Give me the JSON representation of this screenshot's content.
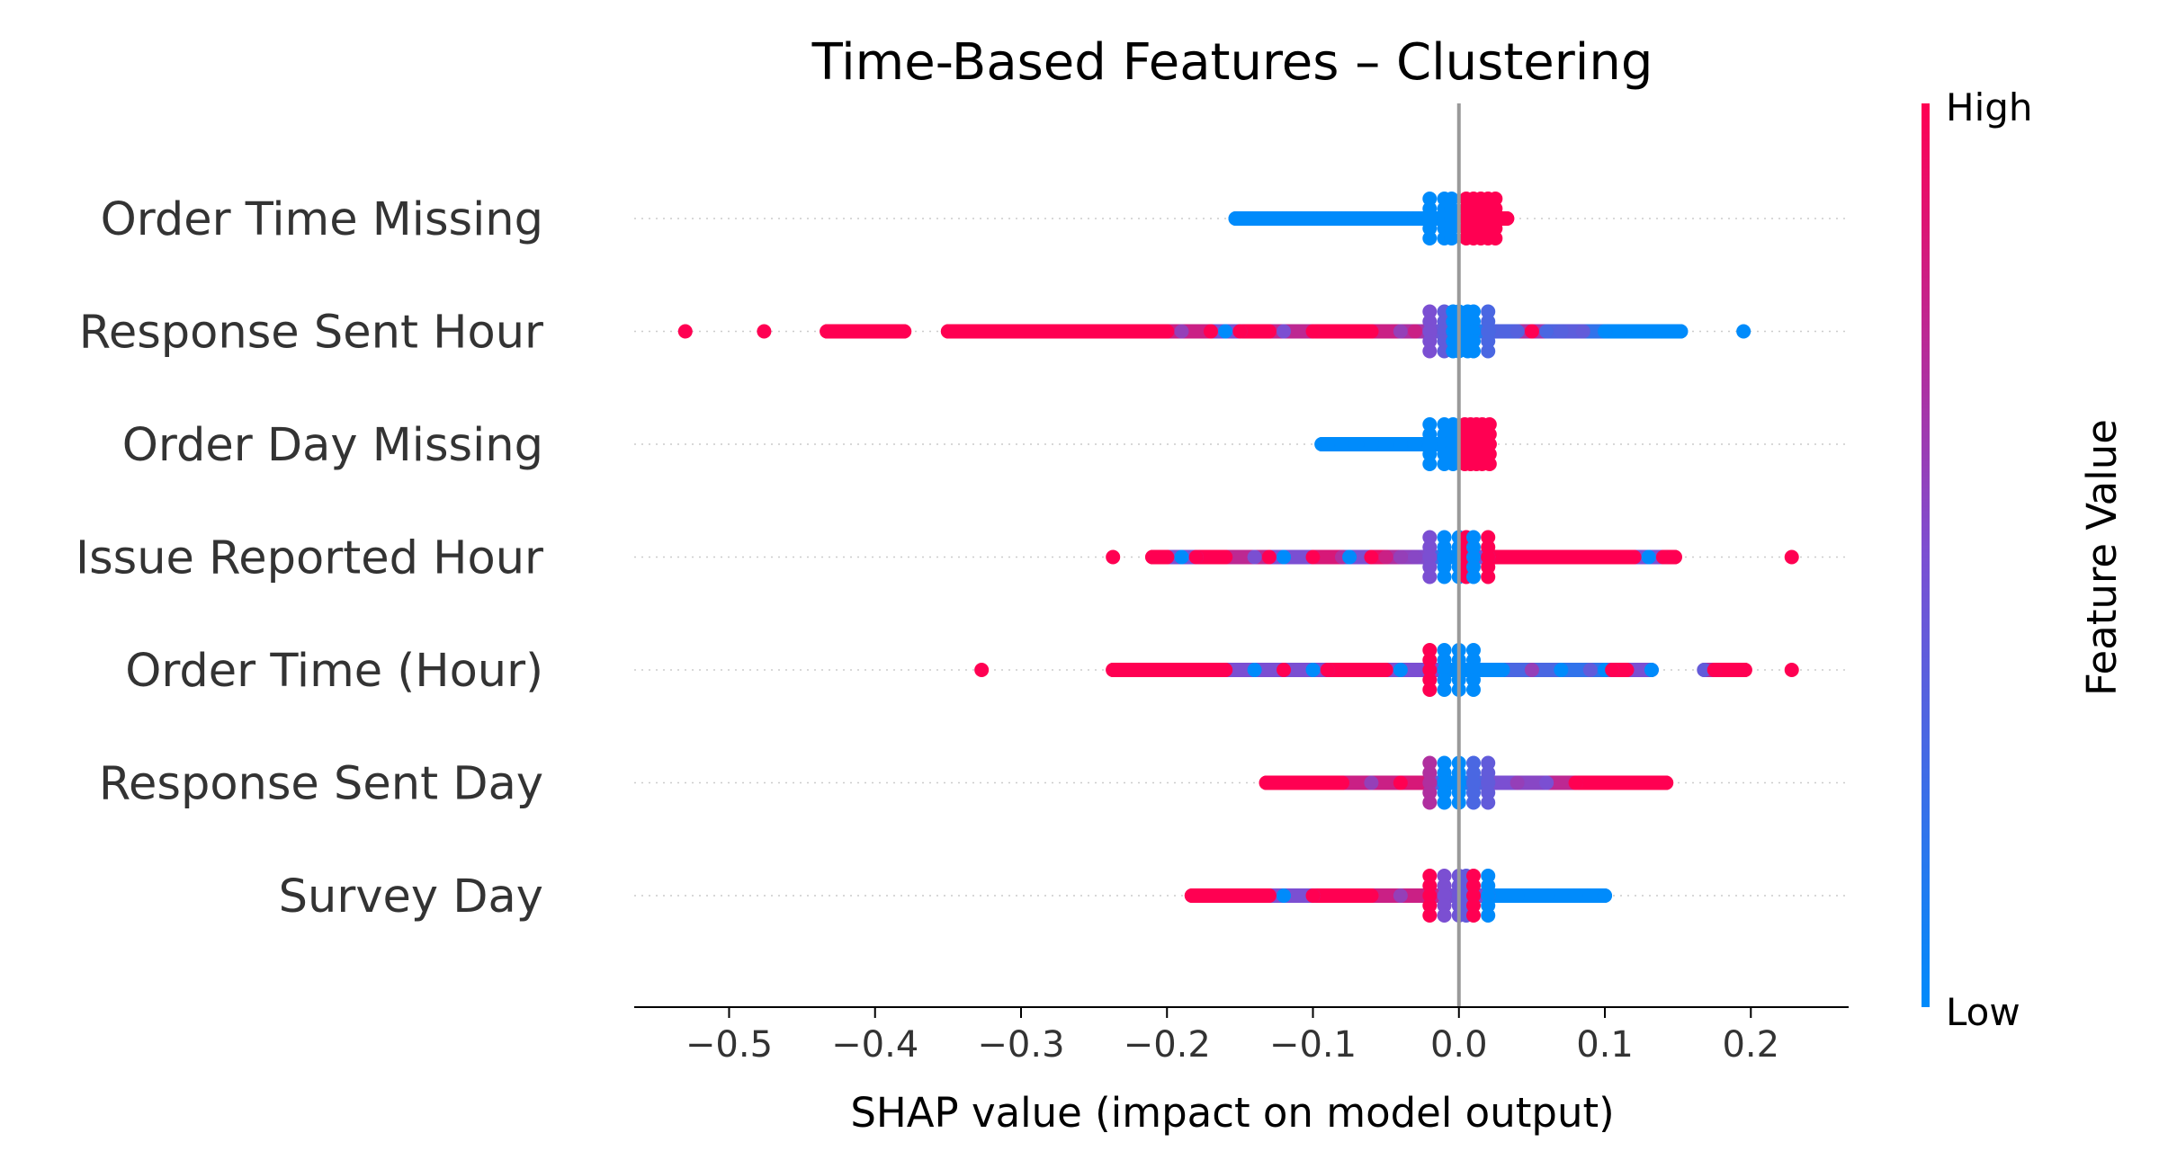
{
  "chart_data": {
    "type": "scatter",
    "subtype": "shap-beeswarm",
    "title": "Time-Based Features – Clustering",
    "xlabel": "SHAP value (impact on model output)",
    "xlim": [
      -0.565,
      0.267
    ],
    "xticks": [
      -0.5,
      -0.4,
      -0.3,
      -0.2,
      -0.1,
      0.0,
      0.1,
      0.2
    ],
    "xtick_labels": [
      "−0.5",
      "−0.4",
      "−0.3",
      "−0.2",
      "−0.1",
      "0.0",
      "0.1",
      "0.2"
    ],
    "zero_line": true,
    "grid": false,
    "colorbar": {
      "label": "Feature Value",
      "high_label": "High",
      "low_label": "Low",
      "low_color": "#008bfb",
      "mid_color": "#7b4fd2",
      "high_color": "#ff0052"
    },
    "features": [
      {
        "name": "Order Time Missing",
        "range": [
          -0.153,
          0.033
        ],
        "points": [
          [
            -0.153,
            0
          ],
          [
            -0.15,
            0
          ],
          [
            -0.145,
            0
          ],
          [
            -0.14,
            0
          ],
          [
            -0.13,
            0
          ],
          [
            -0.12,
            0
          ],
          [
            -0.11,
            0
          ],
          [
            -0.1,
            0
          ],
          [
            -0.09,
            0
          ],
          [
            -0.08,
            0
          ],
          [
            -0.07,
            0
          ],
          [
            -0.06,
            0
          ],
          [
            -0.05,
            0
          ],
          [
            -0.04,
            0
          ],
          [
            -0.03,
            0
          ],
          [
            -0.02,
            0
          ],
          [
            -0.01,
            0
          ],
          [
            -0.005,
            0
          ],
          [
            0.005,
            1
          ],
          [
            0.01,
            1
          ],
          [
            0.015,
            1
          ],
          [
            0.02,
            1
          ],
          [
            0.025,
            1
          ],
          [
            0.03,
            1
          ],
          [
            0.033,
            1
          ]
        ]
      },
      {
        "name": "Response Sent Hour",
        "range": [
          -0.53,
          0.195
        ],
        "points": [
          [
            -0.53,
            1
          ],
          [
            -0.476,
            1
          ],
          [
            -0.433,
            1
          ],
          [
            -0.42,
            1
          ],
          [
            -0.41,
            1
          ],
          [
            -0.395,
            1
          ],
          [
            -0.38,
            1
          ],
          [
            -0.35,
            1
          ],
          [
            -0.34,
            1
          ],
          [
            -0.322,
            1
          ],
          [
            -0.3,
            1
          ],
          [
            -0.28,
            1
          ],
          [
            -0.26,
            1
          ],
          [
            -0.24,
            1
          ],
          [
            -0.22,
            1
          ],
          [
            -0.2,
            1
          ],
          [
            -0.19,
            0.6
          ],
          [
            -0.17,
            1
          ],
          [
            -0.16,
            0
          ],
          [
            -0.15,
            1
          ],
          [
            -0.13,
            1
          ],
          [
            -0.12,
            0.5
          ],
          [
            -0.1,
            1
          ],
          [
            -0.08,
            1
          ],
          [
            -0.06,
            1
          ],
          [
            -0.04,
            0.6
          ],
          [
            -0.03,
            0.8
          ],
          [
            -0.02,
            0.5
          ],
          [
            -0.01,
            0.4
          ],
          [
            -0.004,
            0
          ],
          [
            0.0,
            0
          ],
          [
            0.006,
            0
          ],
          [
            0.01,
            0
          ],
          [
            0.02,
            0.3
          ],
          [
            0.04,
            0.35
          ],
          [
            0.05,
            1
          ],
          [
            0.06,
            0.3
          ],
          [
            0.07,
            0.35
          ],
          [
            0.085,
            0.4
          ],
          [
            0.1,
            0
          ],
          [
            0.11,
            0
          ],
          [
            0.123,
            0
          ],
          [
            0.137,
            0
          ],
          [
            0.152,
            0
          ],
          [
            0.195,
            0
          ]
        ]
      },
      {
        "name": "Order Day Missing",
        "range": [
          -0.094,
          0.021
        ],
        "points": [
          [
            -0.094,
            0
          ],
          [
            -0.09,
            0
          ],
          [
            -0.08,
            0
          ],
          [
            -0.07,
            0
          ],
          [
            -0.06,
            0
          ],
          [
            -0.05,
            0
          ],
          [
            -0.04,
            0
          ],
          [
            -0.03,
            0
          ],
          [
            -0.02,
            0
          ],
          [
            -0.01,
            0
          ],
          [
            -0.004,
            0
          ],
          [
            0.004,
            1
          ],
          [
            0.008,
            1
          ],
          [
            0.012,
            1
          ],
          [
            0.016,
            1
          ],
          [
            0.021,
            1
          ]
        ]
      },
      {
        "name": "Issue Reported Hour",
        "range": [
          -0.237,
          0.228
        ],
        "points": [
          [
            -0.237,
            1
          ],
          [
            -0.21,
            1
          ],
          [
            -0.2,
            1
          ],
          [
            -0.19,
            0
          ],
          [
            -0.18,
            1
          ],
          [
            -0.16,
            1
          ],
          [
            -0.14,
            0.5
          ],
          [
            -0.13,
            1
          ],
          [
            -0.12,
            0
          ],
          [
            -0.1,
            1
          ],
          [
            -0.08,
            0.7
          ],
          [
            -0.075,
            0
          ],
          [
            -0.06,
            1
          ],
          [
            -0.05,
            0.8
          ],
          [
            -0.04,
            0.6
          ],
          [
            -0.03,
            0.55
          ],
          [
            -0.02,
            0.5
          ],
          [
            -0.01,
            0
          ],
          [
            0.0,
            0
          ],
          [
            0.005,
            1
          ],
          [
            0.01,
            0
          ],
          [
            0.02,
            1
          ],
          [
            0.04,
            1
          ],
          [
            0.06,
            1
          ],
          [
            0.08,
            1
          ],
          [
            0.1,
            1
          ],
          [
            0.12,
            1
          ],
          [
            0.13,
            0
          ],
          [
            0.14,
            1
          ],
          [
            0.148,
            1
          ],
          [
            0.228,
            1
          ]
        ]
      },
      {
        "name": "Order Time (Hour)",
        "range": [
          -0.327,
          0.228
        ],
        "points": [
          [
            -0.327,
            1
          ],
          [
            -0.237,
            1
          ],
          [
            -0.22,
            1
          ],
          [
            -0.2,
            1
          ],
          [
            -0.18,
            1
          ],
          [
            -0.16,
            1
          ],
          [
            -0.14,
            0
          ],
          [
            -0.12,
            1
          ],
          [
            -0.1,
            0
          ],
          [
            -0.09,
            1
          ],
          [
            -0.07,
            1
          ],
          [
            -0.05,
            1
          ],
          [
            -0.04,
            0
          ],
          [
            -0.02,
            1
          ],
          [
            -0.01,
            0
          ],
          [
            0.0,
            0
          ],
          [
            0.01,
            0
          ],
          [
            0.03,
            0
          ],
          [
            0.05,
            0.6
          ],
          [
            0.07,
            0
          ],
          [
            0.09,
            0.4
          ],
          [
            0.1,
            0
          ],
          [
            0.105,
            1
          ],
          [
            0.115,
            1
          ],
          [
            0.132,
            0
          ],
          [
            0.168,
            0.4
          ],
          [
            0.175,
            1
          ],
          [
            0.196,
            1
          ],
          [
            0.228,
            1
          ]
        ]
      },
      {
        "name": "Response Sent Day",
        "range": [
          -0.132,
          0.142
        ],
        "points": [
          [
            -0.132,
            1
          ],
          [
            -0.12,
            1
          ],
          [
            -0.1,
            1
          ],
          [
            -0.08,
            1
          ],
          [
            -0.06,
            0.6
          ],
          [
            -0.04,
            1
          ],
          [
            -0.02,
            0.7
          ],
          [
            -0.01,
            0
          ],
          [
            0.0,
            0
          ],
          [
            0.01,
            0.3
          ],
          [
            0.02,
            0.4
          ],
          [
            0.04,
            0.6
          ],
          [
            0.06,
            0.5
          ],
          [
            0.08,
            1
          ],
          [
            0.09,
            1
          ],
          [
            0.1,
            1
          ],
          [
            0.112,
            1
          ],
          [
            0.123,
            1
          ],
          [
            0.138,
            1
          ],
          [
            0.142,
            1
          ]
        ]
      },
      {
        "name": "Survey Day",
        "range": [
          -0.183,
          0.1
        ],
        "points": [
          [
            -0.183,
            1
          ],
          [
            -0.16,
            1
          ],
          [
            -0.145,
            1
          ],
          [
            -0.13,
            1
          ],
          [
            -0.12,
            0
          ],
          [
            -0.1,
            1
          ],
          [
            -0.08,
            1
          ],
          [
            -0.06,
            1
          ],
          [
            -0.04,
            0.6
          ],
          [
            -0.02,
            1
          ],
          [
            -0.01,
            0.5
          ],
          [
            0.0,
            0.45
          ],
          [
            0.005,
            0.4
          ],
          [
            0.01,
            1
          ],
          [
            0.02,
            0
          ],
          [
            0.04,
            0
          ],
          [
            0.06,
            0
          ],
          [
            0.08,
            0
          ],
          [
            0.09,
            0
          ],
          [
            0.1,
            0
          ]
        ]
      }
    ]
  }
}
